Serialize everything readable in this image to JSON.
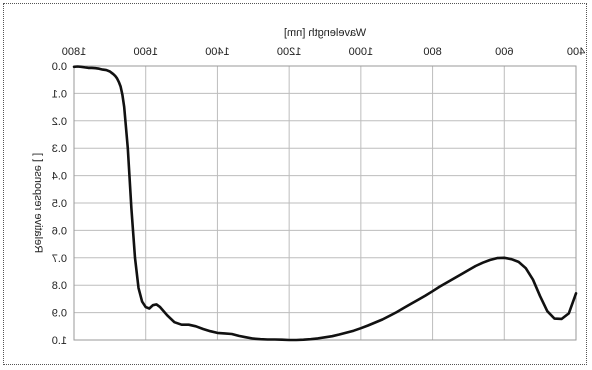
{
  "chart_data": {
    "type": "line",
    "xlabel": "Wavelength [nm]",
    "ylabel": "Relative response [ ]",
    "xlim": [
      400,
      1800
    ],
    "ylim": [
      1.0,
      0.0
    ],
    "x_ticks": [
      400,
      600,
      800,
      1000,
      1200,
      1400,
      1600,
      1800
    ],
    "x_tick_labels": [
      "400",
      "600",
      "800",
      "1000",
      "1200",
      "1400",
      "1600",
      "1800"
    ],
    "y_ticks": [
      0.0,
      0.1,
      0.2,
      0.3,
      0.4,
      0.5,
      0.6,
      0.7,
      0.8,
      0.9,
      1.0
    ],
    "y_tick_labels": [
      "0.0",
      "0.1",
      "0.2",
      "0.3",
      "0.4",
      "0.5",
      "0.6",
      "0.7",
      "0.8",
      "0.9",
      "1.0"
    ],
    "grid": true,
    "mirrored_horizontally": true,
    "series": [
      {
        "name": "",
        "x": [
          400,
          420,
          440,
          460,
          480,
          500,
          520,
          540,
          560,
          580,
          600,
          620,
          640,
          660,
          680,
          700,
          720,
          740,
          760,
          780,
          800,
          820,
          840,
          860,
          880,
          900,
          920,
          940,
          960,
          980,
          1000,
          1020,
          1040,
          1060,
          1080,
          1100,
          1120,
          1140,
          1160,
          1180,
          1200,
          1220,
          1240,
          1260,
          1280,
          1300,
          1320,
          1340,
          1360,
          1380,
          1400,
          1420,
          1440,
          1460,
          1480,
          1500,
          1520,
          1540,
          1560,
          1570,
          1580,
          1590,
          1600,
          1610,
          1620,
          1630,
          1640,
          1650,
          1660,
          1665,
          1670,
          1675,
          1680,
          1685,
          1690,
          1695,
          1700,
          1710,
          1720,
          1730,
          1740,
          1750,
          1760,
          1770,
          1780,
          1790,
          1800
        ],
        "y": [
          0.83,
          0.903,
          0.923,
          0.922,
          0.895,
          0.84,
          0.78,
          0.738,
          0.715,
          0.705,
          0.7,
          0.701,
          0.708,
          0.718,
          0.73,
          0.745,
          0.76,
          0.775,
          0.79,
          0.805,
          0.822,
          0.838,
          0.853,
          0.868,
          0.883,
          0.898,
          0.912,
          0.925,
          0.936,
          0.947,
          0.957,
          0.966,
          0.973,
          0.98,
          0.986,
          0.99,
          0.994,
          0.997,
          0.999,
          1.0,
          1.0,
          0.999,
          0.998,
          0.998,
          0.997,
          0.995,
          0.99,
          0.985,
          0.978,
          0.976,
          0.974,
          0.968,
          0.96,
          0.95,
          0.944,
          0.944,
          0.935,
          0.91,
          0.88,
          0.87,
          0.873,
          0.885,
          0.88,
          0.86,
          0.81,
          0.7,
          0.52,
          0.3,
          0.15,
          0.105,
          0.075,
          0.058,
          0.045,
          0.036,
          0.03,
          0.025,
          0.02,
          0.015,
          0.013,
          0.01,
          0.008,
          0.007,
          0.007,
          0.005,
          0.003,
          0.002,
          0.003
        ]
      }
    ]
  }
}
